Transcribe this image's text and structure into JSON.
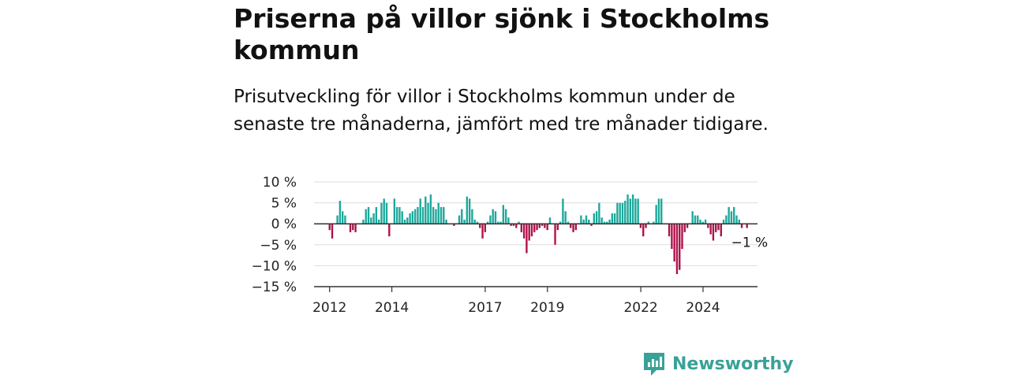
{
  "header": {
    "title": "Priserna på villor sjönk i Stockholms kommun",
    "subtitle": "Prisutveckling för villor i Stockholms kommun under de senaste tre månaderna, jämfört med tre månader tidigare."
  },
  "brand": {
    "name": "Newsworthy",
    "color": "#3aa198"
  },
  "colors": {
    "positive": "#1ca89b",
    "negative": "#b0104a",
    "zero_line": "#333333",
    "grid": "#dddddd"
  },
  "chart_data": {
    "type": "bar",
    "x_unit": "year (fractional, monthly)",
    "x_start": 2012.0,
    "x_step": 0.0833,
    "xlim": [
      2011.5,
      2025.75
    ],
    "ylim": [
      -15,
      10
    ],
    "y_ticks": [
      10,
      5,
      0,
      -5,
      -10,
      -15
    ],
    "y_tick_labels": [
      "10 %",
      "5 %",
      "0 %",
      "−5 %",
      "−10 %",
      "−15 %"
    ],
    "x_ticks": [
      2012,
      2014,
      2017,
      2019,
      2022,
      2024
    ],
    "x_tick_labels": [
      "2012",
      "2014",
      "2017",
      "2019",
      "2022",
      "2024"
    ],
    "grid": true,
    "annotation": {
      "text": "−1 %",
      "value": -1,
      "at": "last bar"
    },
    "values": [
      -1.5,
      -3.5,
      0,
      2,
      5.5,
      3,
      2,
      0,
      -2,
      -1.5,
      -2,
      0,
      0,
      1,
      3.5,
      4,
      1.5,
      2.5,
      4,
      1,
      5,
      6,
      5,
      -3,
      0,
      6,
      4,
      4,
      3,
      1,
      1.5,
      2.5,
      3,
      3.5,
      4,
      6,
      4,
      6.5,
      5,
      7,
      4,
      3.5,
      5,
      4,
      4,
      1,
      0,
      0,
      -0.5,
      0,
      2,
      3.5,
      1,
      6.5,
      6,
      3.5,
      1,
      0.5,
      -1,
      -3.5,
      -2,
      0.5,
      2,
      3.5,
      3,
      0.5,
      0.5,
      4.5,
      3.5,
      1.5,
      -0.5,
      -0.5,
      -1,
      0.5,
      -2,
      -3.5,
      -7,
      -4,
      -3,
      -2,
      -1.5,
      -1,
      -0.5,
      -1,
      -1.5,
      1.5,
      0,
      -5,
      -1.5,
      0.5,
      6,
      3,
      0.5,
      -1,
      -2,
      -1.5,
      0,
      2,
      1,
      2,
      1,
      -0.5,
      2.5,
      3,
      5,
      1.5,
      0.5,
      0.5,
      1,
      2.5,
      2.5,
      5,
      5,
      5,
      5.5,
      7,
      6,
      7,
      6,
      6,
      -1,
      -3,
      -1,
      0.5,
      0,
      0.5,
      4.5,
      6,
      6,
      0,
      0,
      -3,
      -6,
      -9,
      -12,
      -11,
      -6,
      -2,
      -1,
      0,
      3,
      2,
      2,
      1,
      0.5,
      1,
      -1,
      -2.5,
      -4,
      -2,
      -1.5,
      -3,
      1,
      2,
      4,
      3,
      4,
      2,
      1,
      -1,
      0,
      -1
    ]
  }
}
